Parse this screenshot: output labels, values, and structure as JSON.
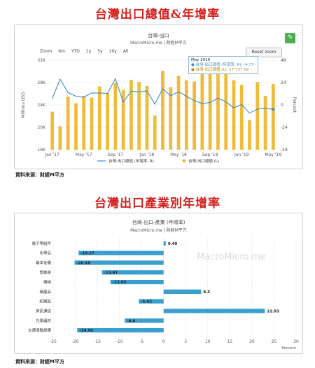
{
  "heading1": "台灣出口總值&年增率",
  "heading2": "台灣出口產業別年增率",
  "chart1_meta": {
    "title": "台灣-出口",
    "subtitle": "MacroMicro.me | 財經M平方",
    "zoom_label": "Zoom",
    "zoom_options": [
      "6m",
      "YTD",
      "1y",
      "5y",
      "10y",
      "All"
    ],
    "reset_label": "Reset zoom",
    "source": "資料來源：財經M平方",
    "tooltip": {
      "date": "May 2019",
      "line1": "● 台灣-出口總值 (年增率, R): -4.77",
      "line2": "● 台灣-出口總值 (L): 27 737.09"
    },
    "colors": {
      "line": "#3b8ec4",
      "bar": "#efbb3b"
    }
  },
  "chart_data": [
    {
      "type": "bar",
      "title": "台灣-出口",
      "x": [
        "Jan '17",
        "Feb '17",
        "Mar '17",
        "Apr '17",
        "May '17",
        "Jun '17",
        "Jul '17",
        "Aug '17",
        "Sep '17",
        "Oct '17",
        "Nov '17",
        "Dec '17",
        "Jan '18",
        "Feb '18",
        "Mar '18",
        "Apr '18",
        "May '18",
        "Jun '18",
        "Jul '18",
        "Aug '18",
        "Sep '18",
        "Oct '18",
        "Nov '18",
        "Dec '18",
        "Jan '19",
        "Feb '19",
        "Mar '19",
        "Apr '19",
        "May '19"
      ],
      "x_ticks": [
        "Jan '17",
        "May '17",
        "Sep '17",
        "Jan '18",
        "May '18",
        "Sep '18",
        "Jan '19",
        "May '19"
      ],
      "series": [
        {
          "name": "台灣-出口總值 (L)",
          "kind": "bar",
          "axis": "left",
          "values": [
            22800,
            20200,
            25500,
            24300,
            25600,
            25300,
            27300,
            26200,
            27900,
            26700,
            28500,
            28100,
            27400,
            22100,
            30100,
            27200,
            29200,
            28400,
            28200,
            29500,
            30000,
            30700,
            29600,
            28400,
            27600,
            21300,
            28100,
            25600,
            27737
          ]
        },
        {
          "name": "台灣-出口總值 (年增率, R)",
          "kind": "line",
          "axis": "right",
          "values": [
            6.8,
            27.6,
            13.2,
            9.4,
            8.3,
            12.9,
            12.7,
            12.4,
            28.1,
            3.1,
            14.8,
            14.0,
            15.0,
            1.0,
            17.4,
            9.8,
            14.1,
            9.4,
            4.5,
            1.6,
            2.6,
            7.2,
            3.4,
            -3.0,
            0.4,
            -8.8,
            -4.4,
            -3.4,
            -4.77
          ]
        }
      ],
      "ylabel_left": "Millions USD",
      "ylabel_right": "Percent",
      "ylim_left": [
        16000,
        32000
      ],
      "yticks_left": [
        "16K",
        "20K",
        "24K",
        "28K",
        "32K"
      ],
      "ylim_right": [
        -48,
        48
      ],
      "yticks_right": [
        "-48",
        "-24",
        "0",
        "24",
        "48"
      ],
      "legend": [
        "台灣-出口總值 (年增率, R)",
        "台灣-出口總值 (L)"
      ],
      "legend_position": "bottom"
    },
    {
      "type": "bar",
      "orientation": "horizontal",
      "title": "台灣-出口-產業 (年增率)",
      "subtitle": "MacroMicro.me | 財經M平方",
      "categories": [
        "電子零組件",
        "化學品",
        "基本金屬",
        "塑橡膠",
        "機械",
        "礦產品",
        "紡織品",
        "資訊通信",
        "光學器材",
        "交通運輸設備"
      ],
      "values": [
        0.49,
        -19.27,
        -20.18,
        -13.97,
        -12.03,
        8.5,
        -5.62,
        22.93,
        -8.8,
        -19.56
      ],
      "value_labels": [
        "0.49",
        "-19.27",
        "-20.18",
        "-13.97",
        "-12.03",
        "8.5",
        "-5.62",
        "22.93",
        "-8.8",
        "-19.56"
      ],
      "xlim": [
        -25,
        30
      ],
      "xticks": [
        "-25",
        "-20",
        "-15",
        "-10",
        "-5",
        "0",
        "5",
        "10",
        "15",
        "20",
        "25",
        "30"
      ],
      "xlabel": "Percent",
      "watermark": "MacroMicro.me",
      "source": "資料來源：財經M平方",
      "color": "#3a9fcf"
    }
  ]
}
